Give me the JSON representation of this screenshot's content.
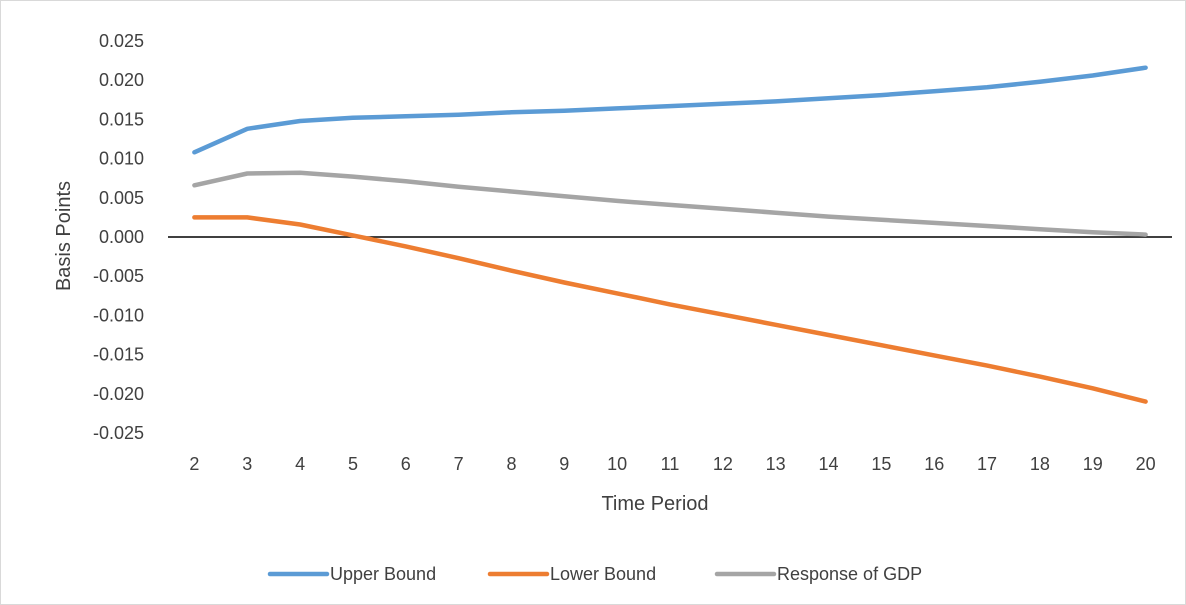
{
  "chart_data": {
    "type": "line",
    "title": "",
    "xlabel": "Time Period",
    "ylabel": "Basis Points",
    "categories": [
      2,
      3,
      4,
      5,
      6,
      7,
      8,
      9,
      10,
      11,
      12,
      13,
      14,
      15,
      16,
      17,
      18,
      19,
      20
    ],
    "category_labels": [
      "2",
      "3",
      "4",
      "5",
      "6",
      "7",
      "8",
      "9",
      "10",
      "11",
      "12",
      "13",
      "14",
      "15",
      "16",
      "17",
      "18",
      "19",
      "20"
    ],
    "ylim": [
      -0.025,
      0.025
    ],
    "yticks": [
      0.025,
      0.02,
      0.015,
      0.01,
      0.005,
      0.0,
      -0.005,
      -0.01,
      -0.015,
      -0.02,
      -0.025
    ],
    "ytick_labels": [
      "0.025",
      "0.020",
      "0.015",
      "0.010",
      "0.005",
      "0.000",
      "-0.005",
      "-0.010",
      "-0.015",
      "-0.020",
      "-0.025"
    ],
    "grid": false,
    "legend_position": "bottom",
    "series": [
      {
        "name": "Upper Bound",
        "color": "#5b9bd5",
        "values": [
          0.0108,
          0.0138,
          0.0148,
          0.0152,
          0.0154,
          0.0156,
          0.0159,
          0.0161,
          0.0164,
          0.0167,
          0.017,
          0.0173,
          0.0177,
          0.0181,
          0.0186,
          0.0191,
          0.0198,
          0.0206,
          0.0216
        ]
      },
      {
        "name": "Lower Bound",
        "color": "#ed7d31",
        "values": [
          0.0025,
          0.0025,
          0.0016,
          0.0002,
          -0.0012,
          -0.0027,
          -0.0043,
          -0.0058,
          -0.0072,
          -0.0086,
          -0.0099,
          -0.0112,
          -0.0125,
          -0.0138,
          -0.0151,
          -0.0164,
          -0.0178,
          -0.0193,
          -0.021
        ]
      },
      {
        "name": "Response of GDP",
        "color": "#a5a5a5",
        "values": [
          0.0066,
          0.0081,
          0.0082,
          0.0077,
          0.0071,
          0.0064,
          0.0058,
          0.0052,
          0.0046,
          0.0041,
          0.0036,
          0.0031,
          0.0026,
          0.0022,
          0.0018,
          0.0014,
          0.001,
          0.0006,
          0.0003
        ]
      }
    ]
  }
}
